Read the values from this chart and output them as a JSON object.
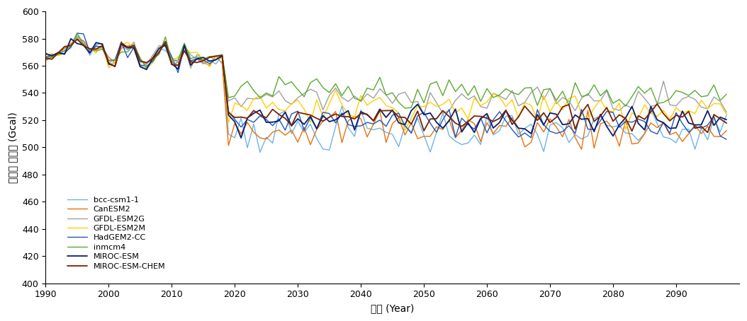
{
  "xlabel": "년도 (Year)",
  "ylabel": "에너지 사용량 (Gcal)",
  "xlim": [
    1990,
    2100
  ],
  "ylim": [
    400,
    600
  ],
  "yticks": [
    400,
    420,
    440,
    460,
    480,
    500,
    520,
    540,
    560,
    580,
    600
  ],
  "xticks": [
    1990,
    2000,
    2010,
    2020,
    2030,
    2040,
    2050,
    2060,
    2070,
    2080,
    2090
  ],
  "models": [
    "bcc-csm1-1",
    "CanESM2",
    "GFDL-ESM2G",
    "GFDL-ESM2M",
    "HadGEM2-CC",
    "inmcm4",
    "MIROC-ESM",
    "MIROC-ESM-CHEM"
  ],
  "colors": [
    "#6EB4E8",
    "#E8720C",
    "#A0A0A0",
    "#FFD000",
    "#2255BB",
    "#5AAA30",
    "#0A1F6E",
    "#7B2200"
  ],
  "linewidths": [
    1.0,
    1.0,
    1.0,
    1.0,
    1.0,
    1.0,
    1.3,
    1.3
  ],
  "fut_bases": [
    513,
    515,
    537,
    532,
    520,
    541,
    522,
    524
  ],
  "fut_noise": [
    8,
    7,
    5,
    6,
    6,
    6,
    5,
    5
  ]
}
